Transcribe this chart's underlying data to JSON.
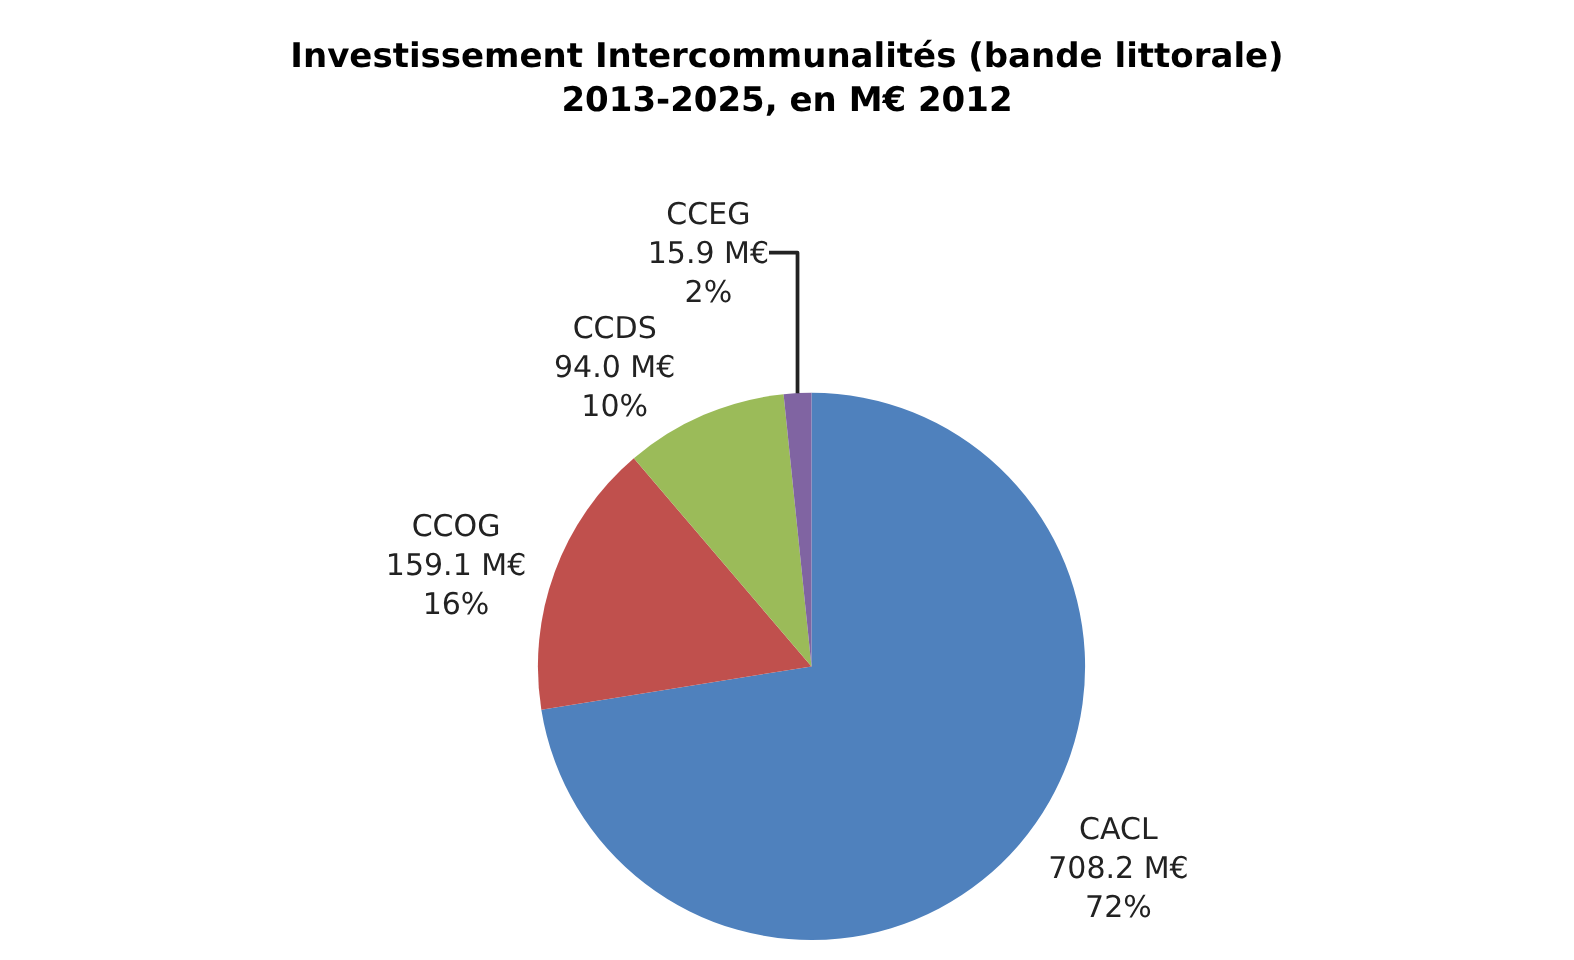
{
  "chart_data": {
    "type": "pie",
    "title": "Investissement Intercommunalités (bande littorale)\n2013-2025, en M€ 2012",
    "categories": [
      "CACL",
      "CCOG",
      "CCDS",
      "CCEG"
    ],
    "values": [
      708.2,
      159.1,
      94.0,
      15.9
    ],
    "colors": [
      "#4f81bd",
      "#c0504d",
      "#9bbb59",
      "#8064a2"
    ],
    "value_labels": [
      "708.2 M€\n72%",
      "159.1 M€\n16%",
      "94.0 M€\n10%",
      "15.9 M€\n2%"
    ],
    "legend": false
  }
}
